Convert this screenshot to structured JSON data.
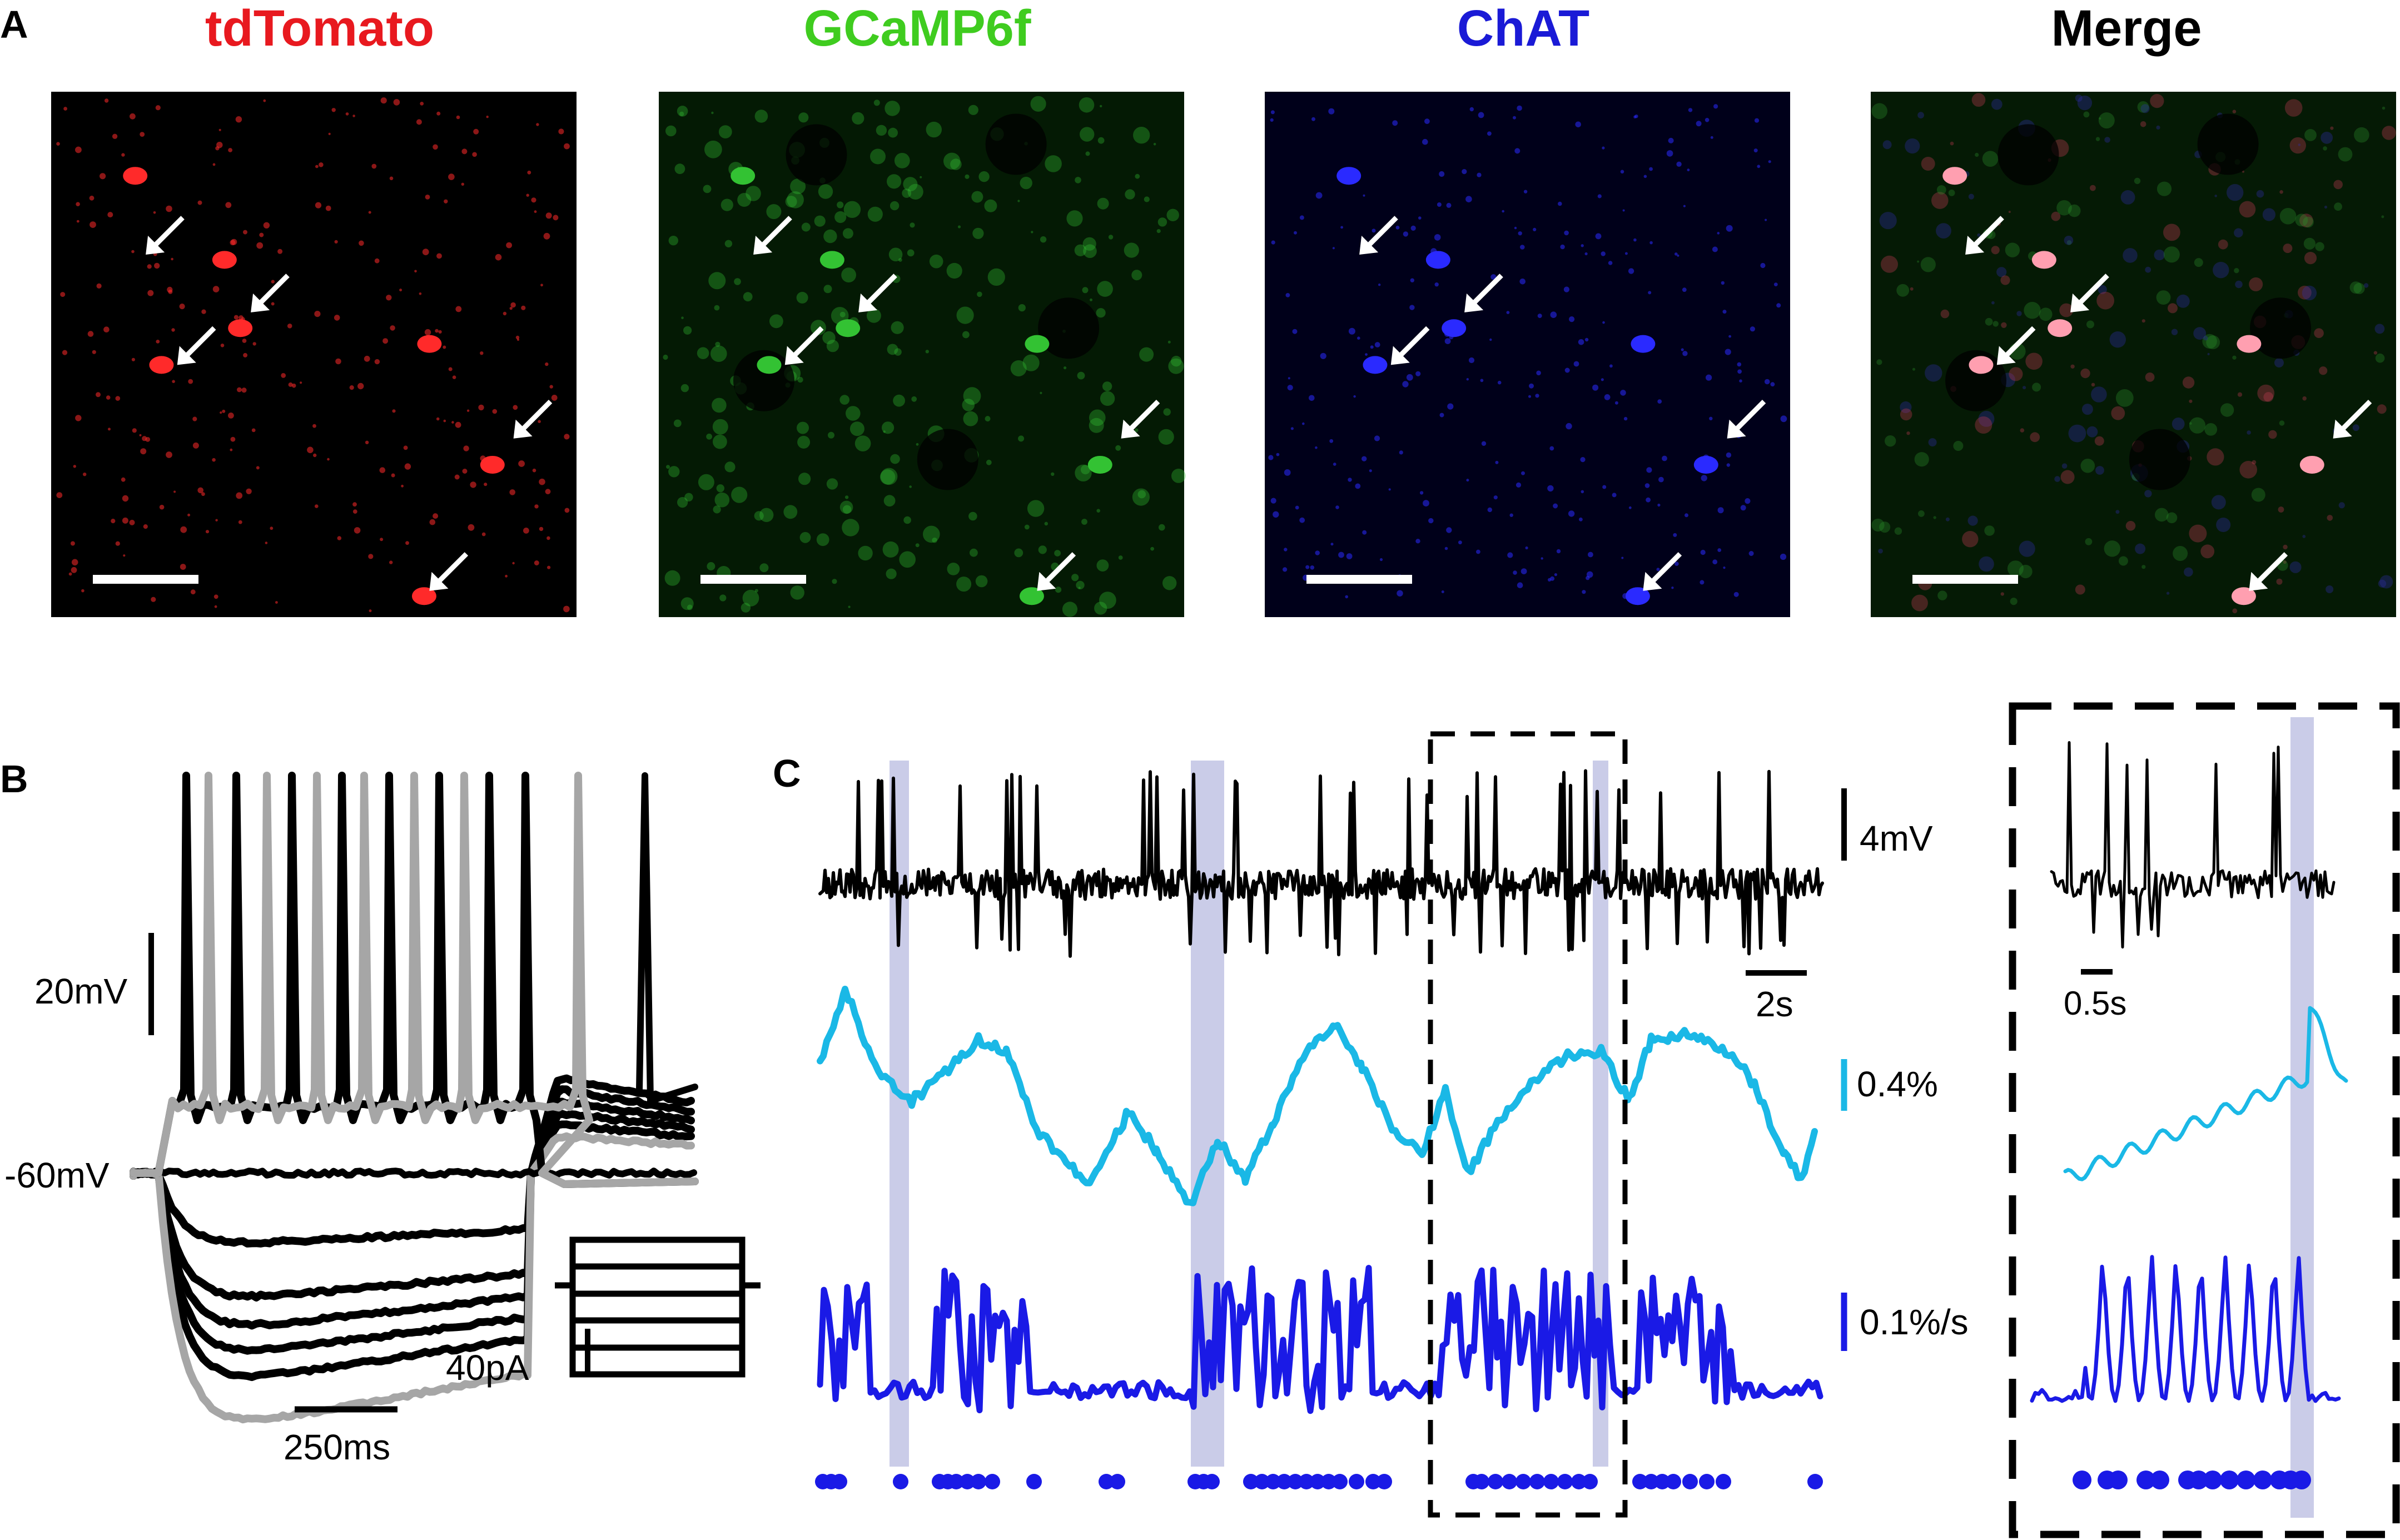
{
  "panel_a": {
    "label": "A",
    "channels": [
      {
        "title": "tdTomato",
        "color": "#e8191f",
        "cell_color": "#ff2a2a",
        "bg_color": "#000000"
      },
      {
        "title": "GCaMP6f",
        "color": "#3fcc1f",
        "cell_color": "#33c233",
        "bg_color": "#041a04"
      },
      {
        "title": "ChAT",
        "color": "#1a1ad6",
        "cell_color": "#2a2aff",
        "bg_color": "#00001a"
      },
      {
        "title": "Merge",
        "color": "#000000",
        "cell_color": "#ff9fb0",
        "bg_color": "#051a05"
      }
    ]
  },
  "panel_b": {
    "label": "B",
    "scale_voltage": "20mV",
    "resting_label": "-60mV",
    "scale_current": "40pA",
    "scale_time": "250ms"
  },
  "panel_c": {
    "label": "C",
    "scale_voltage": "4mV",
    "scale_time": "2s",
    "scale_dff": "0.4%",
    "scale_deriv": "0.1%/s",
    "inset_scale_time": "0.5s"
  },
  "colors": {
    "trace_black": "#000000",
    "trace_gray": "#a6a6a6",
    "dff": "#1ab8e6",
    "deriv": "#1a1ae6",
    "highlight": "#b8bbe0"
  }
}
